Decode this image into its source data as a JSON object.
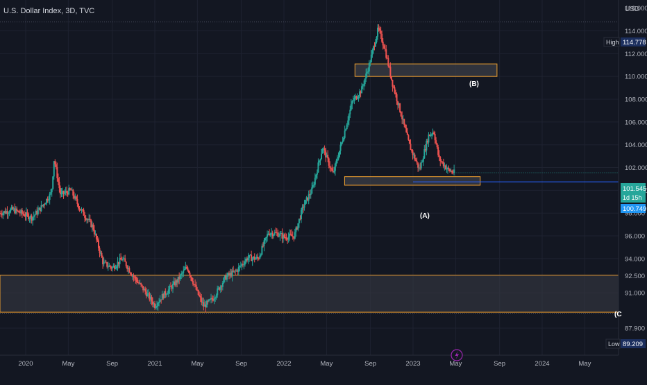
{
  "chart_data": {
    "type": "candlestick",
    "title": "U.S. Dollar Index, 3D, TVC",
    "currency": "USD",
    "grid": true,
    "ylim": [
      87.9,
      117.0
    ],
    "y_ticks": [
      "116.000",
      "114.000",
      "112.000",
      "110.000",
      "108.000",
      "106.000",
      "104.000",
      "102.000",
      "100.000",
      "98.000",
      "96.000",
      "94.000",
      "92.500",
      "91.000",
      "89.209",
      "87.900"
    ],
    "x_ticks": [
      {
        "label": "2020",
        "t": 2020.0
      },
      {
        "label": "May",
        "t": 2020.33
      },
      {
        "label": "Sep",
        "t": 2020.67
      },
      {
        "label": "2021",
        "t": 2021.0
      },
      {
        "label": "May",
        "t": 2021.33
      },
      {
        "label": "Sep",
        "t": 2021.67
      },
      {
        "label": "2022",
        "t": 2022.0
      },
      {
        "label": "May",
        "t": 2022.33
      },
      {
        "label": "Sep",
        "t": 2022.67
      },
      {
        "label": "2023",
        "t": 2023.0
      },
      {
        "label": "May",
        "t": 2023.33
      },
      {
        "label": "Sep",
        "t": 2023.67
      },
      {
        "label": "2024",
        "t": 2024.0
      },
      {
        "label": "May",
        "t": 2024.33
      }
    ],
    "series_path": [
      [
        2019.8,
        98.0
      ],
      [
        2019.9,
        98.3
      ],
      [
        2020.05,
        97.6
      ],
      [
        2020.12,
        98.5
      ],
      [
        2020.2,
        99.8
      ],
      [
        2020.22,
        102.8
      ],
      [
        2020.27,
        99.6
      ],
      [
        2020.35,
        100.0
      ],
      [
        2020.42,
        98.4
      ],
      [
        2020.52,
        96.8
      ],
      [
        2020.6,
        93.6
      ],
      [
        2020.67,
        93.2
      ],
      [
        2020.75,
        94.0
      ],
      [
        2020.83,
        92.5
      ],
      [
        2020.92,
        91.2
      ],
      [
        2021.0,
        89.9
      ],
      [
        2021.05,
        90.6
      ],
      [
        2021.17,
        92.0
      ],
      [
        2021.25,
        93.3
      ],
      [
        2021.33,
        91.0
      ],
      [
        2021.38,
        89.8
      ],
      [
        2021.45,
        90.5
      ],
      [
        2021.55,
        92.4
      ],
      [
        2021.63,
        92.9
      ],
      [
        2021.72,
        94.1
      ],
      [
        2021.8,
        94.0
      ],
      [
        2021.88,
        96.3
      ],
      [
        2021.95,
        96.2
      ],
      [
        2022.0,
        95.9
      ],
      [
        2022.08,
        96.0
      ],
      [
        2022.15,
        98.6
      ],
      [
        2022.22,
        100.1
      ],
      [
        2022.3,
        103.8
      ],
      [
        2022.38,
        101.4
      ],
      [
        2022.45,
        104.3
      ],
      [
        2022.53,
        107.8
      ],
      [
        2022.6,
        108.8
      ],
      [
        2022.66,
        111.0
      ],
      [
        2022.73,
        114.2
      ],
      [
        2022.78,
        112.5
      ],
      [
        2022.84,
        109.4
      ],
      [
        2022.9,
        107.0
      ],
      [
        2022.97,
        104.0
      ],
      [
        2023.05,
        101.8
      ],
      [
        2023.12,
        104.8
      ],
      [
        2023.16,
        105.2
      ],
      [
        2023.2,
        102.8
      ],
      [
        2023.27,
        101.8
      ],
      [
        2023.32,
        101.545
      ]
    ],
    "annotations": {
      "zone_a_label": "(A)",
      "zone_b_label": "(B)",
      "zone_c_label": "(C"
    },
    "price_tags": {
      "high_label": "High",
      "high_value": "114.778",
      "low_label": "Low",
      "low_value": "89.209",
      "last_value": "101.545",
      "countdown": "1d 15h",
      "line_value": "100.749"
    }
  },
  "colors": {
    "background": "#131722",
    "grid": "#1e2230",
    "axis_text": "#b2b5be",
    "up": "#26a69a",
    "down": "#ef5350",
    "zone_border": "#f0a030",
    "zone_fill": "#3b3d46",
    "line_blue": "#2962ff",
    "tag_navy": "#1c2f5e",
    "tag_green": "#26a69a",
    "tag_blue": "#2196f3",
    "lightning": "#9c27b0"
  }
}
